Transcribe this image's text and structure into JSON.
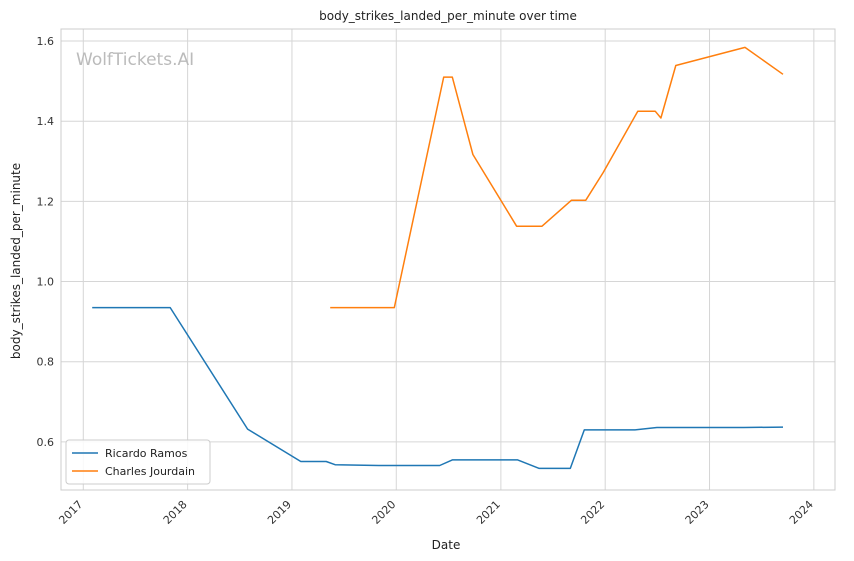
{
  "watermark": "WolfTickets.AI",
  "chart_data": {
    "type": "line",
    "title": "body_strikes_landed_per_minute over time",
    "xlabel": "Date",
    "ylabel": "body_strikes_landed_per_minute",
    "x_ticks": [
      "2017",
      "2018",
      "2019",
      "2020",
      "2021",
      "2022",
      "2023",
      "2024"
    ],
    "y_ticks": [
      "0.6",
      "0.8",
      "1.0",
      "1.2",
      "1.4",
      "1.6"
    ],
    "xlim": [
      "2016-10-15",
      "2024-03-15"
    ],
    "ylim": [
      0.48,
      1.63
    ],
    "grid": true,
    "legend_position": "lower-left",
    "series": [
      {
        "name": "Ricardo Ramos",
        "color": "#1f77b4",
        "points": [
          [
            "2017-02-01",
            0.935
          ],
          [
            "2017-11-01",
            0.935
          ],
          [
            "2018-07-30",
            0.632
          ],
          [
            "2019-02-01",
            0.551
          ],
          [
            "2019-05-01",
            0.551
          ],
          [
            "2019-06-01",
            0.543
          ],
          [
            "2019-11-01",
            0.541
          ],
          [
            "2020-06-01",
            0.541
          ],
          [
            "2020-07-15",
            0.555
          ],
          [
            "2021-03-01",
            0.555
          ],
          [
            "2021-05-15",
            0.534
          ],
          [
            "2021-09-01",
            0.534
          ],
          [
            "2021-10-20",
            0.63
          ],
          [
            "2022-04-15",
            0.63
          ],
          [
            "2022-07-01",
            0.636
          ],
          [
            "2023-05-01",
            0.636
          ],
          [
            "2023-09-15",
            0.637
          ]
        ]
      },
      {
        "name": "Charles Jourdain",
        "color": "#ff7f0e",
        "points": [
          [
            "2019-05-15",
            0.935
          ],
          [
            "2019-12-25",
            0.935
          ],
          [
            "2020-06-15",
            1.51
          ],
          [
            "2020-07-15",
            1.51
          ],
          [
            "2020-09-25",
            1.317
          ],
          [
            "2021-02-25",
            1.138
          ],
          [
            "2021-05-25",
            1.138
          ],
          [
            "2021-09-05",
            1.203
          ],
          [
            "2021-10-25",
            1.203
          ],
          [
            "2021-12-25",
            1.272
          ],
          [
            "2022-04-25",
            1.425
          ],
          [
            "2022-06-25",
            1.425
          ],
          [
            "2022-07-15",
            1.408
          ],
          [
            "2022-09-05",
            1.539
          ],
          [
            "2023-05-05",
            1.584
          ],
          [
            "2023-09-15",
            1.517
          ]
        ]
      }
    ]
  }
}
